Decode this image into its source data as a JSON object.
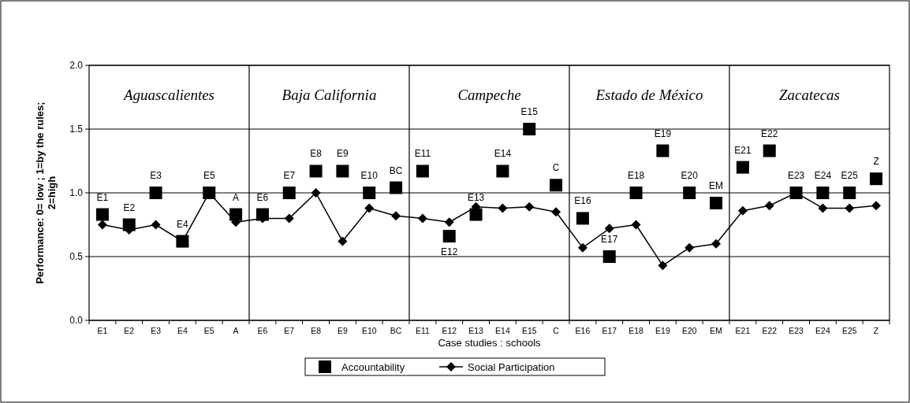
{
  "chart_data": {
    "type": "scatter",
    "xlabel": "Case studies : schools",
    "ylabel": "Performance: 0= low ; 1=by the rules; 2=high",
    "categories": [
      "E1",
      "E2",
      "E3",
      "E4",
      "E5",
      "A",
      "E6",
      "E7",
      "E8",
      "E9",
      "E10",
      "BC",
      "E11",
      "E12",
      "E13",
      "E14",
      "E15",
      "C",
      "E16",
      "E17",
      "E18",
      "E19",
      "E20",
      "EM",
      "E21",
      "E22",
      "E23",
      "E24",
      "E25",
      "Z"
    ],
    "series": [
      {
        "name": "Accountability",
        "marker": "square",
        "color": "#000000",
        "values": [
          0.83,
          0.75,
          1.0,
          0.62,
          1.0,
          0.83,
          0.83,
          1.0,
          1.17,
          1.17,
          1.0,
          1.04,
          1.17,
          0.66,
          0.83,
          1.17,
          1.5,
          1.06,
          0.8,
          0.5,
          1.0,
          1.33,
          1.0,
          0.92,
          1.2,
          1.33,
          1.0,
          1.0,
          1.0,
          1.11
        ]
      },
      {
        "name": "Social Participation",
        "type": "line",
        "marker": "diamond",
        "line_style": "solid",
        "color": "#000000",
        "values": [
          0.75,
          0.71,
          0.75,
          0.62,
          1.0,
          0.77,
          0.8,
          0.8,
          1.0,
          0.62,
          0.88,
          0.82,
          0.8,
          0.77,
          0.89,
          0.88,
          0.89,
          0.85,
          0.57,
          0.72,
          0.75,
          0.43,
          0.57,
          0.6,
          0.86,
          0.9,
          1.0,
          0.88,
          0.88,
          0.9
        ]
      }
    ],
    "ylim": [
      0,
      2
    ],
    "yticks": [
      {
        "value": 0,
        "label": "0.0"
      },
      {
        "value": 0.5,
        "label": "0.5"
      },
      {
        "value": 1,
        "label": "1.0"
      },
      {
        "value": 1.5,
        "label": "1.5"
      },
      {
        "value": 2,
        "label": "2.0"
      }
    ],
    "grid": "y",
    "legend": "bottom",
    "annotations": [
      "Aguascalientes",
      "Baja California",
      "Campeche",
      "Estado de México",
      "Zacatecas",
      {
        "text": "E1",
        "x": "E1",
        "y": 0.83
      },
      {
        "text": "E2",
        "x": "E2",
        "y": 0.75
      },
      {
        "text": "E3",
        "x": "E3",
        "y": 1.0
      },
      {
        "text": "E4",
        "x": "E4",
        "y": 0.62
      },
      {
        "text": "E5",
        "x": "E5",
        "y": 1.0
      },
      {
        "text": "A",
        "x": "A",
        "y": 0.83
      },
      {
        "text": "E6",
        "x": "E6",
        "y": 0.83
      },
      {
        "text": "E7",
        "x": "E7",
        "y": 1.0
      },
      {
        "text": "E8",
        "x": "E8",
        "y": 1.17
      },
      {
        "text": "E9",
        "x": "E9",
        "y": 1.17
      },
      {
        "text": "E10",
        "x": "E10",
        "y": 1.0
      },
      {
        "text": "BC",
        "x": "BC",
        "y": 1.04
      },
      {
        "text": "E11",
        "x": "E11",
        "y": 1.17
      },
      {
        "text": "E12",
        "x": "E12",
        "y": 0.66
      },
      {
        "text": "E13",
        "x": "E13",
        "y": 0.83
      },
      {
        "text": "E14",
        "x": "E14",
        "y": 1.17
      },
      {
        "text": "E15",
        "x": "E15",
        "y": 1.5
      },
      {
        "text": "C",
        "x": "C",
        "y": 1.06
      },
      {
        "text": "E16",
        "x": "E16",
        "y": 0.8
      },
      {
        "text": "E17",
        "x": "E17",
        "y": 0.5
      },
      {
        "text": "E18",
        "x": "E18",
        "y": 1.0
      },
      {
        "text": "E19",
        "x": "E19",
        "y": 1.33
      },
      {
        "text": "E20",
        "x": "E20",
        "y": 1.0
      },
      {
        "text": "EM",
        "x": "EM",
        "y": 0.92
      },
      {
        "text": "E21",
        "x": "E21",
        "y": 1.2
      },
      {
        "text": "E22",
        "x": "E22",
        "y": 1.33
      },
      {
        "text": "E23",
        "x": "E23",
        "y": 1.0
      },
      {
        "text": "E24",
        "x": "E24",
        "y": 1.0
      },
      {
        "text": "E25",
        "x": "E25",
        "y": 1.0
      },
      {
        "text": "Z",
        "x": "Z",
        "y": 1.11
      }
    ]
  }
}
